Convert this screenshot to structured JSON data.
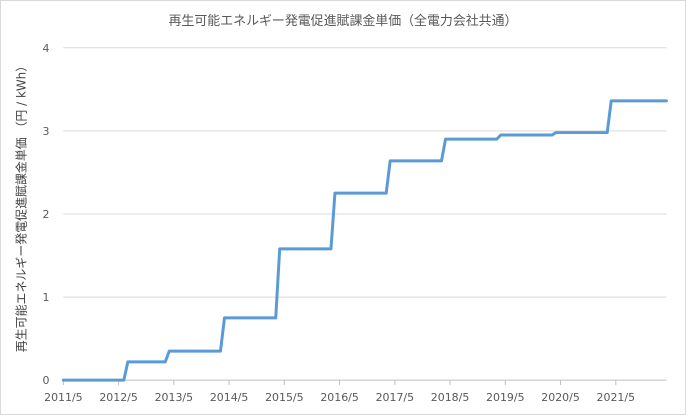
{
  "chart_data": {
    "type": "line",
    "title": "再生可能エネルギー発電促進賦課金単価（全電力会社共通）",
    "ylabel": "再生可能エネルギー発電促進賦課金単価 （円 / kWh）",
    "xlabel": "",
    "ylim": [
      0,
      4
    ],
    "yticks": [
      "0",
      "1",
      "2",
      "3",
      "4"
    ],
    "xticks": [
      "2011/5",
      "2012/5",
      "2013/5",
      "2014/5",
      "2015/5",
      "2016/5",
      "2017/5",
      "2018/5",
      "2019/5",
      "2020/5",
      "2021/5"
    ],
    "grid": "horizontal",
    "legend": "none",
    "line_color": "#5b9bd5",
    "step": true,
    "periods": [
      {
        "from": "2011/5",
        "value": 0
      },
      {
        "from": "2012/7",
        "value": 0.22
      },
      {
        "from": "2013/4",
        "value": 0.35
      },
      {
        "from": "2014/4",
        "value": 0.75
      },
      {
        "from": "2015/4",
        "value": 1.58
      },
      {
        "from": "2016/4",
        "value": 2.25
      },
      {
        "from": "2017/4",
        "value": 2.64
      },
      {
        "from": "2018/4",
        "value": 2.9
      },
      {
        "from": "2019/4",
        "value": 2.95
      },
      {
        "from": "2020/4",
        "value": 2.98
      },
      {
        "from": "2021/4",
        "value": 3.36
      }
    ],
    "x_end": "2022/4"
  }
}
